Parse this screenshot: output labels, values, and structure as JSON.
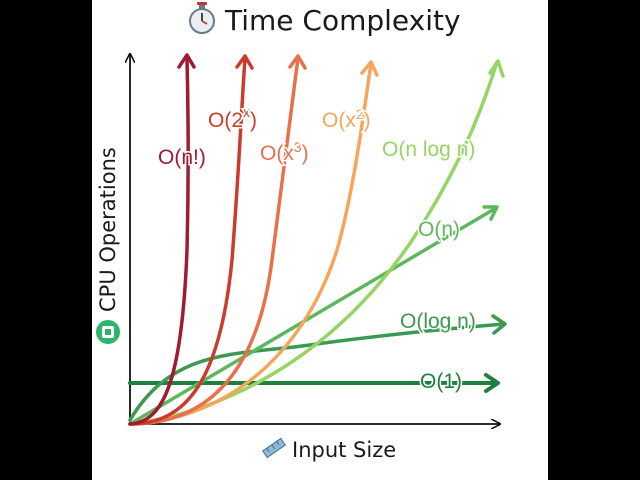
{
  "title": "Time Complexity",
  "title_icon": "stopwatch-icon",
  "y_axis_label": "CPU Operations",
  "y_axis_icon": "chip-icon",
  "x_axis_label": "Input Size",
  "x_axis_icon": "ruler-icon",
  "curves": [
    {
      "id": "factorial",
      "label": "O(n!)",
      "color": "#9e1b32"
    },
    {
      "id": "exponential",
      "label": "O(2",
      "sup": "x",
      "close": ")",
      "color": "#cc3b2e"
    },
    {
      "id": "cubic",
      "label": "O(x",
      "sup": "3",
      "close": ")",
      "color": "#e8704a"
    },
    {
      "id": "quadratic",
      "label": "O(x",
      "sup": "2",
      "close": ")",
      "color": "#f3a65c"
    },
    {
      "id": "nlogn",
      "label": "O(n log n)",
      "color": "#96d466"
    },
    {
      "id": "linear",
      "label": "O(n)",
      "color": "#5cb85c"
    },
    {
      "id": "logarithmic",
      "label": "O(log n)",
      "color": "#3a9a4f"
    },
    {
      "id": "constant",
      "label": "O(1)",
      "color": "#1f7f3f"
    }
  ]
}
